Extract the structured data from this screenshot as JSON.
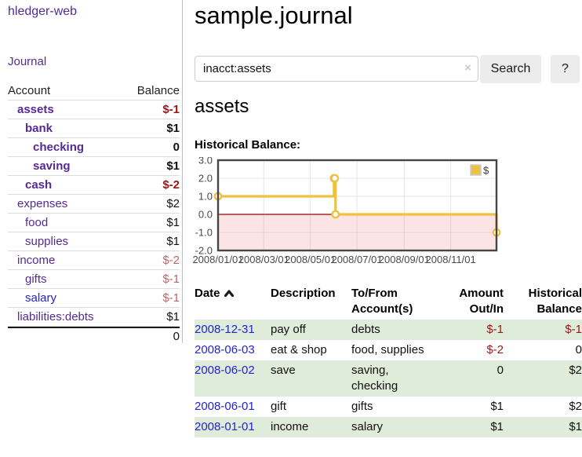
{
  "app": {
    "brand": "hledger-web",
    "nav_journal": "Journal"
  },
  "sidebar": {
    "col_account": "Account",
    "col_balance": "Balance",
    "rows": [
      {
        "account": "assets",
        "indent": 1,
        "bold": true,
        "link": "visited",
        "balance": "$-1",
        "bstyle": "neg-strong"
      },
      {
        "account": "bank",
        "indent": 2,
        "bold": true,
        "link": "visited",
        "balance": "$1",
        "bstyle": "pos"
      },
      {
        "account": "checking",
        "indent": 3,
        "bold": true,
        "link": "visited",
        "balance": "0",
        "bstyle": "pos"
      },
      {
        "account": "saving",
        "indent": 3,
        "bold": true,
        "link": "visited",
        "balance": "$1",
        "bstyle": "pos"
      },
      {
        "account": "cash",
        "indent": 2,
        "bold": true,
        "link": "visited",
        "balance": "$-2",
        "bstyle": "neg-strong"
      },
      {
        "account": "expenses",
        "indent": 1,
        "bold": false,
        "link": "visited",
        "balance": "$2",
        "bstyle": "pos"
      },
      {
        "account": "food",
        "indent": 2,
        "bold": false,
        "link": "visited",
        "balance": "$1",
        "bstyle": "pos"
      },
      {
        "account": "supplies",
        "indent": 2,
        "bold": false,
        "link": "visited",
        "balance": "$1",
        "bstyle": "pos"
      },
      {
        "account": "income",
        "indent": 1,
        "bold": false,
        "link": "visited",
        "balance": "$-2",
        "bstyle": "neg-soft"
      },
      {
        "account": "gifts",
        "indent": 2,
        "bold": false,
        "link": "visited",
        "balance": "$-1",
        "bstyle": "neg-soft"
      },
      {
        "account": "salary",
        "indent": 2,
        "bold": false,
        "link": "new",
        "balance": "$-1",
        "bstyle": "neg-soft"
      },
      {
        "account": "liabilities:debts",
        "indent": 1,
        "bold": false,
        "link": "visited",
        "balance": "$1",
        "bstyle": "pos"
      }
    ],
    "total": "0"
  },
  "main": {
    "title": "sample.journal",
    "search": {
      "value": "inacct:assets",
      "clear_icon": "×",
      "search_button": "Search",
      "help_button": "?"
    },
    "account_heading": "assets",
    "chart_heading": "Historical Balance:"
  },
  "chart_data": {
    "type": "line",
    "title": "Historical Balance:",
    "steps": true,
    "legend": {
      "position": "top-right",
      "label": "$"
    },
    "series": [
      {
        "name": "$",
        "dates": [
          "2008-01-01",
          "2008-06-01",
          "2008-06-02",
          "2008-06-03",
          "2008-12-31"
        ],
        "x_days": [
          0,
          152,
          153,
          154,
          365
        ],
        "values": [
          1,
          2,
          2,
          0,
          -1
        ]
      }
    ],
    "x_total_days": 365,
    "ylim": [
      -2,
      3
    ],
    "yticks": [
      3.0,
      2.0,
      1.0,
      0.0,
      -1.0,
      -2.0
    ],
    "ytick_labels": [
      "3.0",
      "2.0",
      "1.0",
      "0.0",
      "-1.0",
      "-2.0"
    ],
    "xtick_days": [
      0,
      60,
      121,
      182,
      244,
      305
    ],
    "xtick_labels": [
      "2008/01/01",
      "2008/03/01",
      "2008/05/01",
      "2008/07/01",
      "2008/09/01",
      "2008/11/01"
    ],
    "grid": true,
    "colors": {
      "series": "#EDC240",
      "point_fill": "#ffffff",
      "negative_region": "rgba(244,88,88,0.16)",
      "zero_line": "#990000",
      "gridline": "#e6e6e6",
      "border": "#454545",
      "tick_label": "#4a4a4a",
      "legend_box_border": "#cccccc"
    }
  },
  "register": {
    "columns": [
      "Date",
      "Description",
      "To/From Account(s)",
      "Amount Out/In",
      "Historical Balance"
    ],
    "sort_column": "Date",
    "sort_direction": "ascending",
    "rows": [
      {
        "date": "2008-12-31",
        "description": "pay off",
        "accounts": "debts",
        "amount": "$-1",
        "amount_neg": true,
        "balance": "$-1",
        "balance_neg": true,
        "highlight": true
      },
      {
        "date": "2008-06-03",
        "description": "eat & shop",
        "accounts": "food, supplies",
        "amount": "$-2",
        "amount_neg": true,
        "balance": "0",
        "balance_neg": false,
        "highlight": false
      },
      {
        "date": "2008-06-02",
        "description": "save",
        "accounts": "saving, checking",
        "amount": "0",
        "amount_neg": false,
        "balance": "$2",
        "balance_neg": false,
        "highlight": true
      },
      {
        "date": "2008-06-01",
        "description": "gift",
        "accounts": "gifts",
        "amount": "$1",
        "amount_neg": false,
        "balance": "$2",
        "balance_neg": false,
        "highlight": false
      },
      {
        "date": "2008-01-01",
        "description": "income",
        "accounts": "salary",
        "amount": "$1",
        "amount_neg": false,
        "balance": "$1",
        "balance_neg": false,
        "highlight": true
      }
    ]
  },
  "colors": {
    "link_visited": "#552a93",
    "link_new": "#2323d6",
    "negative_strong": "#9b1717",
    "negative_soft": "#bd6767",
    "row_highlight": "#deecd9"
  }
}
